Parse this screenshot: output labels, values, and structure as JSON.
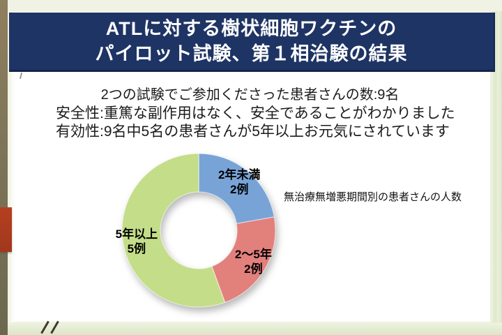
{
  "slide": {
    "title_line1": "ATLに対する樹状細胞ワクチンの",
    "title_line2": "パイロット試験、第１相治験の結果",
    "intro": "2つの試験でご参加くださった患者さんの数:9名",
    "safety": "安全性:重篤な副作用はなく、安全であることがわかりました",
    "efficacy": "有効性:9名中5名の患者さんが5年以上お元気にされています",
    "chart_caption": "無治療無増悪期間別の患者さんの人数"
  },
  "chart_data": {
    "type": "pie",
    "subtype": "donut",
    "title": "無治療無増悪期間別の患者さんの人数",
    "unit": "例",
    "total": 9,
    "segments": [
      {
        "label": "2年未満",
        "count_label": "2例",
        "value": 2,
        "color": "#78a3d7"
      },
      {
        "label": "2〜5年",
        "count_label": "2例",
        "value": 2,
        "color": "#e2807c"
      },
      {
        "label": "5年以上",
        "count_label": "5例",
        "value": 5,
        "color": "#c4dd89"
      }
    ],
    "start_angle_deg": 0,
    "direction": "clockwise",
    "inner_radius_ratio": 0.5,
    "labels_inside": true,
    "legend": "none"
  },
  "theme": {
    "banner_bg": "#1e3464",
    "banner_text": "#ffffff",
    "slide_bg": "#f0f2e3",
    "left_strip": "#7d7459",
    "accent_red": "#ae3a1e",
    "border_green": "#e3ecd2",
    "text_color": "#1c1c1c"
  }
}
